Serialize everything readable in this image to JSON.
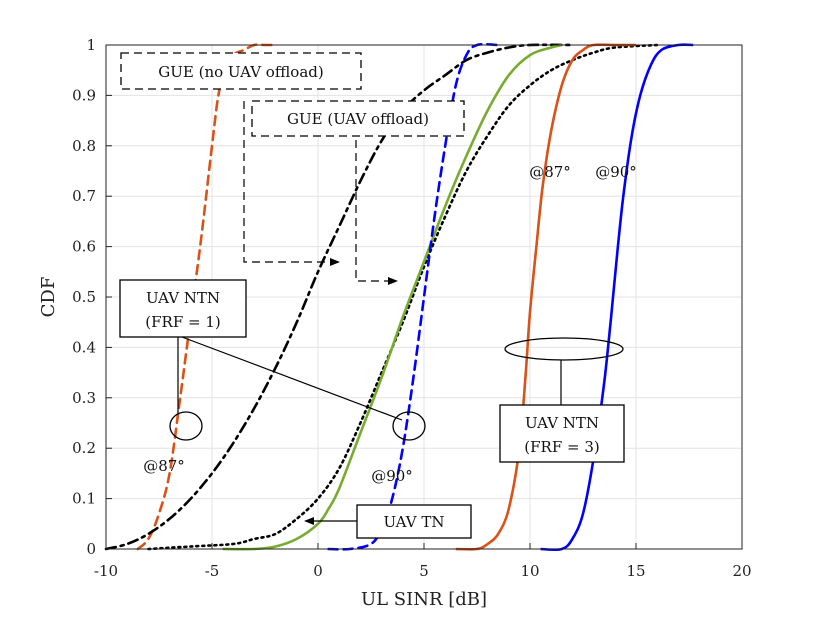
{
  "chart_data": {
    "type": "line",
    "title": "",
    "xlabel": "UL SINR [dB]",
    "ylabel": "CDF",
    "xlim": [
      -10,
      20
    ],
    "ylim": [
      0,
      1
    ],
    "xticks": [
      "-10",
      "-5",
      "0",
      "5",
      "10",
      "15",
      "20"
    ],
    "yticks": [
      "0",
      "0.1",
      "0.2",
      "0.3",
      "0.4",
      "0.5",
      "0.6",
      "0.7",
      "0.8",
      "0.9",
      "1"
    ],
    "grid": true,
    "series": [
      {
        "name": "GUE (no UAV offload)",
        "color": "#d95319",
        "style": "dashed",
        "x": [
          -8.5,
          -8,
          -7.5,
          -7,
          -6.5,
          -6,
          -5.5,
          -5,
          -4.7,
          -4.4,
          -4,
          -3.5,
          -3,
          -2.5,
          -2
        ],
        "y": [
          0,
          0.02,
          0.07,
          0.15,
          0.3,
          0.46,
          0.62,
          0.8,
          0.9,
          0.95,
          0.98,
          0.99,
          1,
          1,
          1
        ]
      },
      {
        "name": "GUE (UAV offload)",
        "color": "#000000",
        "style": "dashdot",
        "x": [
          -10,
          -9,
          -8,
          -7,
          -6,
          -5,
          -4,
          -3,
          -2,
          -1,
          0,
          1,
          2,
          3,
          4,
          5,
          6,
          7,
          8,
          9,
          10,
          12
        ],
        "y": [
          0,
          0.01,
          0.03,
          0.06,
          0.1,
          0.15,
          0.21,
          0.28,
          0.36,
          0.45,
          0.55,
          0.64,
          0.73,
          0.81,
          0.87,
          0.91,
          0.94,
          0.97,
          0.985,
          0.995,
          1,
          1
        ]
      },
      {
        "name": "UAV NTN @87° (FRF = 1)",
        "color": "#000000",
        "style": "dotted",
        "x": [
          -8,
          -6,
          -4,
          -3,
          -2,
          -1,
          0,
          1,
          2,
          3,
          4,
          5,
          6,
          7,
          8,
          9,
          10,
          11,
          12,
          13,
          14,
          16
        ],
        "y": [
          0,
          0.005,
          0.01,
          0.02,
          0.03,
          0.06,
          0.1,
          0.16,
          0.25,
          0.35,
          0.45,
          0.56,
          0.66,
          0.75,
          0.82,
          0.88,
          0.92,
          0.95,
          0.97,
          0.985,
          0.995,
          1
        ]
      },
      {
        "name": "UAV TN",
        "color": "#77ac30",
        "style": "solid",
        "x": [
          -4.5,
          -3,
          -2,
          -1,
          0,
          0.5,
          1,
          2,
          3,
          4,
          5,
          6,
          7,
          8,
          9,
          10,
          11,
          11.5
        ],
        "y": [
          0,
          0,
          0.005,
          0.02,
          0.05,
          0.08,
          0.12,
          0.23,
          0.34,
          0.46,
          0.57,
          0.68,
          0.78,
          0.87,
          0.94,
          0.98,
          0.995,
          1
        ]
      },
      {
        "name": "UAV NTN @90° (FRF = 1)",
        "color": "#0000ff",
        "style": "dashed",
        "x": [
          0.5,
          1.5,
          2.5,
          3,
          3.5,
          4,
          4.5,
          5,
          5.5,
          6,
          6.5,
          7,
          7.5,
          8.5
        ],
        "y": [
          0,
          0,
          0.01,
          0.04,
          0.1,
          0.2,
          0.34,
          0.5,
          0.66,
          0.8,
          0.92,
          0.98,
          1,
          1
        ]
      },
      {
        "name": "UAV NTN @87° (FRF = 3)",
        "color": "#d95319",
        "style": "solid",
        "x": [
          6.5,
          7.5,
          8,
          8.5,
          9,
          9.5,
          9.8,
          10,
          10.3,
          10.6,
          11,
          11.5,
          12,
          12.5,
          13,
          14,
          15
        ],
        "y": [
          0,
          0,
          0.01,
          0.03,
          0.08,
          0.2,
          0.35,
          0.47,
          0.6,
          0.72,
          0.83,
          0.92,
          0.97,
          0.99,
          1,
          1,
          1
        ]
      },
      {
        "name": "UAV NTN @90° (FRF = 3)",
        "color": "#0000ff",
        "style": "solid",
        "x": [
          10.5,
          11.5,
          12,
          12.5,
          13,
          13.5,
          13.8,
          14.1,
          14.4,
          14.8,
          15.2,
          15.7,
          16.2,
          17,
          17.7
        ],
        "y": [
          0,
          0,
          0.02,
          0.07,
          0.18,
          0.33,
          0.45,
          0.58,
          0.7,
          0.82,
          0.9,
          0.96,
          0.99,
          1,
          1
        ]
      }
    ],
    "annotations": {
      "gue_no_offload": "GUE (no UAV offload)",
      "gue_offload": "GUE (UAV offload)",
      "ntn_frf1_line1": "UAV NTN",
      "ntn_frf1_line2": "(FRF = 1)",
      "ntn_frf3_line1": "UAV NTN",
      "ntn_frf3_line2": "(FRF = 3)",
      "uav_tn": "UAV TN",
      "at87_left": "@87°",
      "at90_mid": "@90°",
      "at87_right": "@87°",
      "at90_right": "@90°"
    }
  }
}
